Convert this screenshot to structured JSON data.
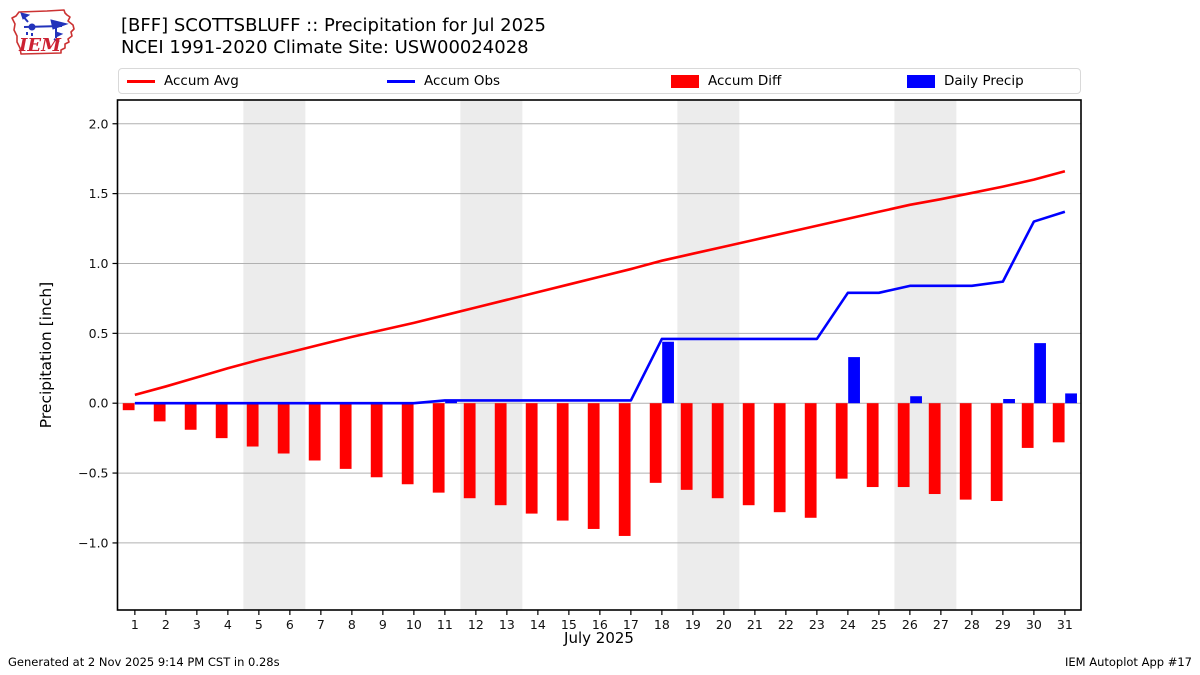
{
  "logo": {
    "text": "IEM"
  },
  "header": {
    "title_line1": "[BFF] SCOTTSBLUFF :: Precipitation for Jul 2025",
    "title_line2": "NCEI 1991-2020 Climate Site: USW00024028"
  },
  "legend": {
    "items": [
      {
        "label": "Accum Avg",
        "swatch": "line",
        "color": "#ff0000"
      },
      {
        "label": "Accum Obs",
        "swatch": "line",
        "color": "#0000ff"
      },
      {
        "label": "Accum Diff",
        "swatch": "patch",
        "color": "#ff0000"
      },
      {
        "label": "Daily Precip",
        "swatch": "patch",
        "color": "#0000ff"
      }
    ]
  },
  "footer": {
    "left": "Generated at 2 Nov 2025 9:14 PM CST in 0.28s",
    "right": "IEM Autoplot App #17"
  },
  "chart_data": {
    "type": "line+bar",
    "title": "[BFF] SCOTTSBLUFF :: Precipitation for Jul 2025 — NCEI 1991-2020 Climate Site: USW00024028",
    "xlabel": "July 2025",
    "ylabel": "Precipitation [inch]",
    "x": [
      1,
      2,
      3,
      4,
      5,
      6,
      7,
      8,
      9,
      10,
      11,
      12,
      13,
      14,
      15,
      16,
      17,
      18,
      19,
      20,
      21,
      22,
      23,
      24,
      25,
      26,
      27,
      28,
      29,
      30,
      31
    ],
    "series": [
      {
        "name": "Accum Avg",
        "type": "line",
        "color": "#ff0000",
        "offset": 0,
        "values": [
          0.06,
          0.12,
          0.185,
          0.25,
          0.31,
          0.365,
          0.42,
          0.475,
          0.525,
          0.575,
          0.63,
          0.685,
          0.74,
          0.795,
          0.85,
          0.905,
          0.96,
          1.02,
          1.07,
          1.12,
          1.17,
          1.22,
          1.27,
          1.32,
          1.37,
          1.42,
          1.46,
          1.505,
          1.55,
          1.6,
          1.66
        ]
      },
      {
        "name": "Accum Obs",
        "type": "line",
        "color": "#0000ff",
        "offset": 0,
        "values": [
          0,
          0,
          0,
          0,
          0,
          0,
          0,
          0,
          0,
          0,
          0.02,
          0.02,
          0.02,
          0.02,
          0.02,
          0.02,
          0.02,
          0.46,
          0.46,
          0.46,
          0.46,
          0.46,
          0.46,
          0.79,
          0.79,
          0.84,
          0.84,
          0.84,
          0.87,
          1.3,
          1.37
        ]
      },
      {
        "name": "Accum Diff",
        "type": "bar",
        "color": "#ff0000",
        "offset": -0.2,
        "values": [
          -0.05,
          -0.13,
          -0.19,
          -0.25,
          -0.31,
          -0.36,
          -0.41,
          -0.47,
          -0.53,
          -0.58,
          -0.64,
          -0.68,
          -0.73,
          -0.79,
          -0.84,
          -0.9,
          -0.95,
          -0.57,
          -0.62,
          -0.68,
          -0.73,
          -0.78,
          -0.82,
          -0.54,
          -0.6,
          -0.6,
          -0.65,
          -0.69,
          -0.7,
          -0.32,
          -0.28
        ]
      },
      {
        "name": "Daily Precip",
        "type": "bar",
        "color": "#0000ff",
        "offset": 0.2,
        "values": [
          0,
          0,
          0,
          0,
          0,
          0,
          0,
          0,
          0,
          0,
          0.02,
          0,
          0,
          0,
          0,
          0,
          0,
          0.44,
          0,
          0,
          0,
          0,
          0,
          0.33,
          0,
          0.05,
          0,
          0,
          0.03,
          0.43,
          0.07
        ]
      }
    ],
    "ylim": [
      -1.48,
      2.17
    ],
    "xlim": [
      0.44,
      31.52
    ],
    "yticks": {
      "values": [
        -1.0,
        -0.5,
        0.0,
        0.5,
        1.0,
        1.5,
        2.0
      ],
      "labels": [
        "−1.0",
        "−0.5",
        "0.0",
        "0.5",
        "1.0",
        "1.5",
        "2.0"
      ]
    },
    "xticks": [
      1,
      2,
      3,
      4,
      5,
      6,
      7,
      8,
      9,
      10,
      11,
      12,
      13,
      14,
      15,
      16,
      17,
      18,
      19,
      20,
      21,
      22,
      23,
      24,
      25,
      26,
      27,
      28,
      29,
      30,
      31
    ],
    "weekend_bands": [
      [
        4.5,
        6.5
      ],
      [
        11.5,
        13.5
      ],
      [
        18.5,
        20.5
      ],
      [
        25.5,
        27.5
      ]
    ],
    "grid": true,
    "legend_position": "top",
    "style": {
      "band": "#ececec",
      "grid": "#b0b0b0",
      "spine": "#000000",
      "bar_width": 0.38
    }
  }
}
